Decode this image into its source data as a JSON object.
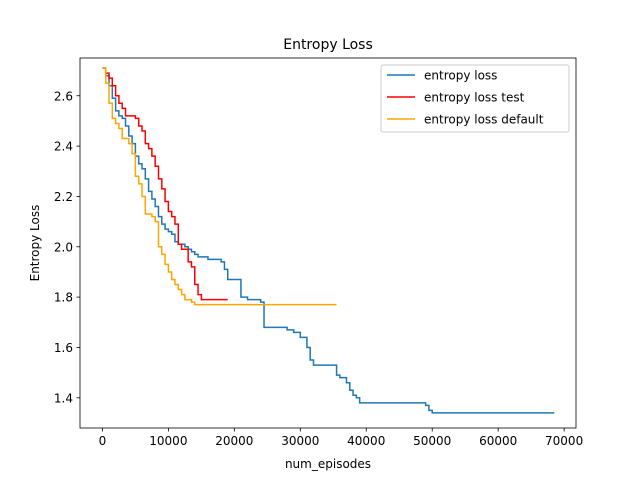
{
  "chart_data": {
    "type": "line",
    "title": "Entropy Loss",
    "xlabel": "num_episodes",
    "ylabel": "Entropy Loss",
    "xlim": [
      -3400,
      71800
    ],
    "ylim": [
      1.28,
      2.75
    ],
    "xticks": [
      0,
      10000,
      20000,
      30000,
      40000,
      50000,
      60000,
      70000
    ],
    "yticks": [
      1.4,
      1.6,
      1.8,
      2.0,
      2.2,
      2.4,
      2.6
    ],
    "xtick_labels": [
      "0",
      "10000",
      "20000",
      "30000",
      "40000",
      "50000",
      "60000",
      "70000"
    ],
    "ytick_labels": [
      "1.4",
      "1.6",
      "1.8",
      "2.0",
      "2.2",
      "2.4",
      "2.6"
    ],
    "grid": false,
    "legend_position": "top-right",
    "series": [
      {
        "name": "entropy loss",
        "color": "#1f77b4",
        "x": [
          0,
          500,
          1000,
          1500,
          2000,
          2500,
          3000,
          3500,
          4000,
          4500,
          5000,
          5500,
          6000,
          6500,
          7000,
          7500,
          8000,
          8500,
          9000,
          9500,
          10000,
          10500,
          11000,
          11500,
          12000,
          12500,
          13000,
          13500,
          14000,
          14500,
          15000,
          16000,
          17000,
          18000,
          18500,
          19000,
          20000,
          21000,
          22000,
          23000,
          24000,
          24500,
          25000,
          26000,
          27000,
          28000,
          29000,
          30000,
          31000,
          31500,
          32000,
          33000,
          34000,
          35000,
          35500,
          36000,
          37000,
          37500,
          38000,
          38500,
          39000,
          40000,
          45000,
          48000,
          49000,
          49500,
          50000,
          60000,
          68500
        ],
        "y": [
          2.71,
          2.68,
          2.64,
          2.59,
          2.54,
          2.52,
          2.51,
          2.48,
          2.44,
          2.41,
          2.36,
          2.33,
          2.31,
          2.27,
          2.22,
          2.19,
          2.16,
          2.12,
          2.09,
          2.07,
          2.06,
          2.05,
          2.02,
          2.01,
          2.01,
          2.0,
          1.99,
          1.98,
          1.97,
          1.96,
          1.96,
          1.95,
          1.95,
          1.94,
          1.91,
          1.87,
          1.87,
          1.8,
          1.79,
          1.79,
          1.78,
          1.68,
          1.68,
          1.68,
          1.68,
          1.67,
          1.66,
          1.64,
          1.6,
          1.55,
          1.53,
          1.53,
          1.53,
          1.53,
          1.49,
          1.48,
          1.46,
          1.43,
          1.41,
          1.4,
          1.38,
          1.38,
          1.38,
          1.38,
          1.37,
          1.35,
          1.34,
          1.34,
          1.34
        ]
      },
      {
        "name": "entropy loss test",
        "color": "#ff0000",
        "x": [
          0,
          500,
          1000,
          1500,
          2000,
          2500,
          3000,
          3500,
          4000,
          5000,
          5500,
          6000,
          6500,
          7000,
          7500,
          8000,
          8500,
          9000,
          9500,
          10000,
          10500,
          11000,
          11500,
          12000,
          12500,
          13000,
          13500,
          14000,
          14500,
          15000,
          16000,
          17000,
          19000
        ],
        "y": [
          2.71,
          2.69,
          2.67,
          2.64,
          2.6,
          2.57,
          2.55,
          2.52,
          2.52,
          2.51,
          2.48,
          2.46,
          2.41,
          2.39,
          2.36,
          2.32,
          2.27,
          2.23,
          2.18,
          2.14,
          2.12,
          2.09,
          2.01,
          1.99,
          1.99,
          1.94,
          1.92,
          1.85,
          1.81,
          1.79,
          1.79,
          1.79,
          1.79
        ]
      },
      {
        "name": "entropy loss default",
        "color": "#ffa500",
        "x": [
          0,
          500,
          1000,
          1500,
          2000,
          2500,
          3000,
          3500,
          4000,
          4500,
          5000,
          5500,
          6000,
          6500,
          7000,
          7500,
          8000,
          8500,
          9000,
          9500,
          10000,
          10500,
          11000,
          11500,
          12000,
          12500,
          13000,
          13500,
          14000,
          15000,
          20000,
          25000,
          30000,
          35500
        ],
        "y": [
          2.71,
          2.65,
          2.57,
          2.51,
          2.49,
          2.47,
          2.43,
          2.43,
          2.41,
          2.37,
          2.28,
          2.25,
          2.2,
          2.13,
          2.13,
          2.12,
          2.1,
          2.0,
          1.97,
          1.93,
          1.9,
          1.87,
          1.85,
          1.83,
          1.81,
          1.79,
          1.79,
          1.78,
          1.77,
          1.77,
          1.77,
          1.77,
          1.77,
          1.77
        ]
      }
    ]
  }
}
